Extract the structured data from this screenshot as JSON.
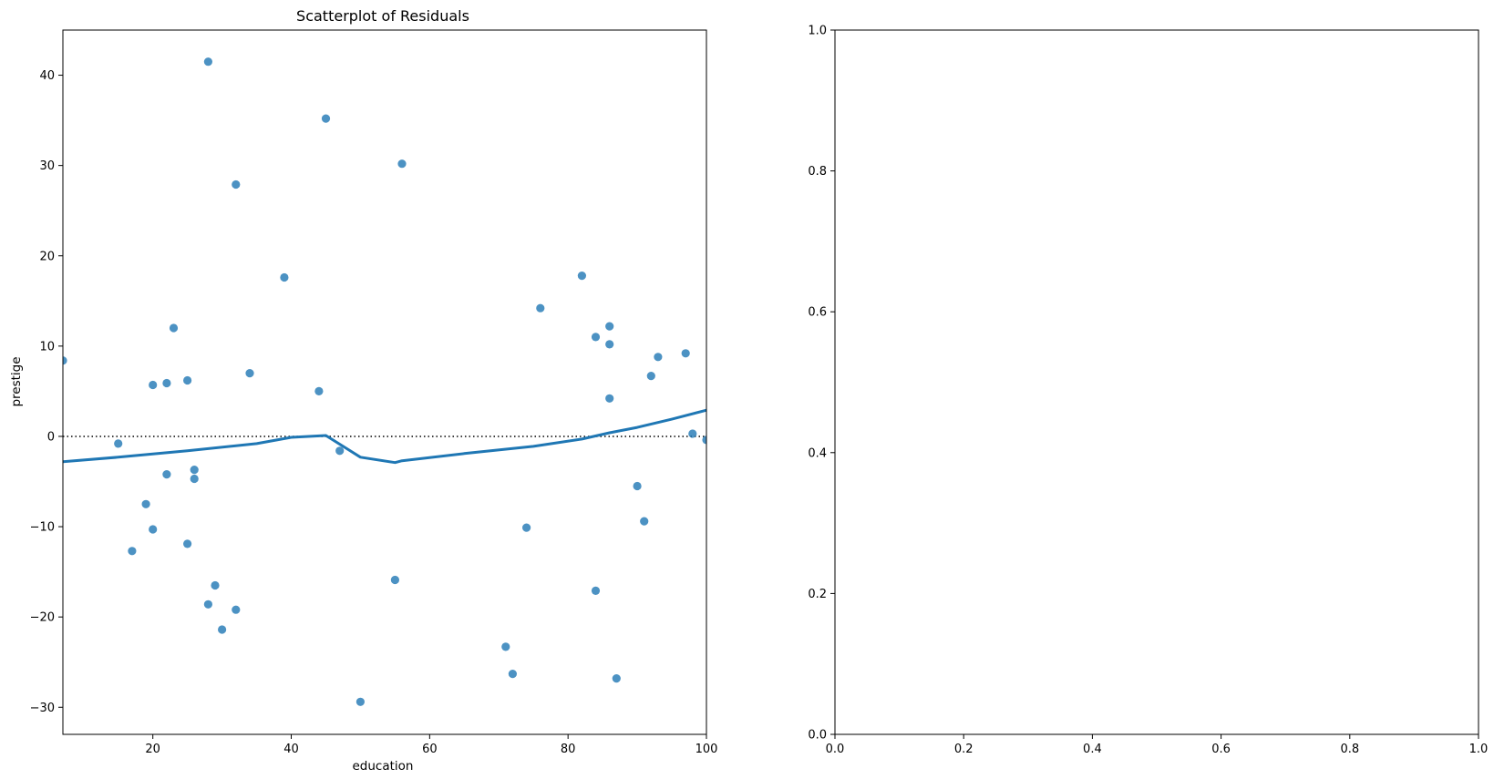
{
  "chart_data": [
    {
      "type": "scatter",
      "title": "Scatterplot of Residuals",
      "xlabel": "education",
      "ylabel": "prestige",
      "xlim": [
        7,
        100
      ],
      "ylim": [
        -33,
        45
      ],
      "xticks": [
        20,
        40,
        60,
        80,
        100
      ],
      "yticks": [
        -30,
        -20,
        -10,
        0,
        10,
        20,
        30,
        40
      ],
      "grid": false,
      "colors": {
        "points": "#1f77b4",
        "line": "#1f77b4",
        "reference": "#000000"
      },
      "reference_line": {
        "y": 0,
        "style": "dotted"
      },
      "series": [
        {
          "type": "scatter",
          "points": [
            [
              7,
              8.4
            ],
            [
              15,
              -0.8
            ],
            [
              17,
              -12.7
            ],
            [
              19,
              -7.5
            ],
            [
              20,
              5.7
            ],
            [
              20,
              -10.3
            ],
            [
              22,
              5.9
            ],
            [
              22,
              -4.2
            ],
            [
              23,
              12.0
            ],
            [
              25,
              6.2
            ],
            [
              25,
              -11.9
            ],
            [
              26,
              -3.7
            ],
            [
              26,
              -4.7
            ],
            [
              28,
              41.5
            ],
            [
              28,
              -18.6
            ],
            [
              29,
              -16.5
            ],
            [
              30,
              -21.4
            ],
            [
              32,
              27.9
            ],
            [
              32,
              -19.2
            ],
            [
              34,
              7.0
            ],
            [
              39,
              17.6
            ],
            [
              44,
              5.0
            ],
            [
              45,
              35.2
            ],
            [
              47,
              -1.6
            ],
            [
              50,
              -29.4
            ],
            [
              55,
              -15.9
            ],
            [
              56,
              30.2
            ],
            [
              71,
              -23.3
            ],
            [
              72,
              -26.3
            ],
            [
              74,
              -10.1
            ],
            [
              76,
              14.2
            ],
            [
              82,
              17.8
            ],
            [
              84,
              11.0
            ],
            [
              84,
              -17.1
            ],
            [
              86,
              12.2
            ],
            [
              86,
              10.2
            ],
            [
              86,
              4.2
            ],
            [
              87,
              -26.8
            ],
            [
              90,
              -5.5
            ],
            [
              91,
              -9.4
            ],
            [
              92,
              6.7
            ],
            [
              93,
              8.8
            ],
            [
              97,
              9.2
            ],
            [
              98,
              0.3
            ],
            [
              100,
              -0.4
            ]
          ]
        },
        {
          "type": "line",
          "points": [
            [
              7,
              -2.8
            ],
            [
              15,
              -2.3
            ],
            [
              25,
              -1.6
            ],
            [
              35,
              -0.8
            ],
            [
              40,
              -0.1
            ],
            [
              45,
              0.1
            ],
            [
              50,
              -2.3
            ],
            [
              55,
              -2.9
            ],
            [
              56,
              -2.7
            ],
            [
              65,
              -1.9
            ],
            [
              75,
              -1.1
            ],
            [
              82,
              -0.3
            ],
            [
              86,
              0.4
            ],
            [
              90,
              1.0
            ],
            [
              95,
              1.9
            ],
            [
              100,
              2.9
            ]
          ]
        }
      ]
    },
    {
      "type": "scatter",
      "title": "",
      "xlabel": "",
      "ylabel": "",
      "xlim": [
        0,
        1
      ],
      "ylim": [
        0,
        1
      ],
      "xticks": [
        0.0,
        0.2,
        0.4,
        0.6,
        0.8,
        1.0
      ],
      "yticks": [
        0.0,
        0.2,
        0.4,
        0.6,
        0.8,
        1.0
      ],
      "grid": false,
      "series": []
    }
  ]
}
